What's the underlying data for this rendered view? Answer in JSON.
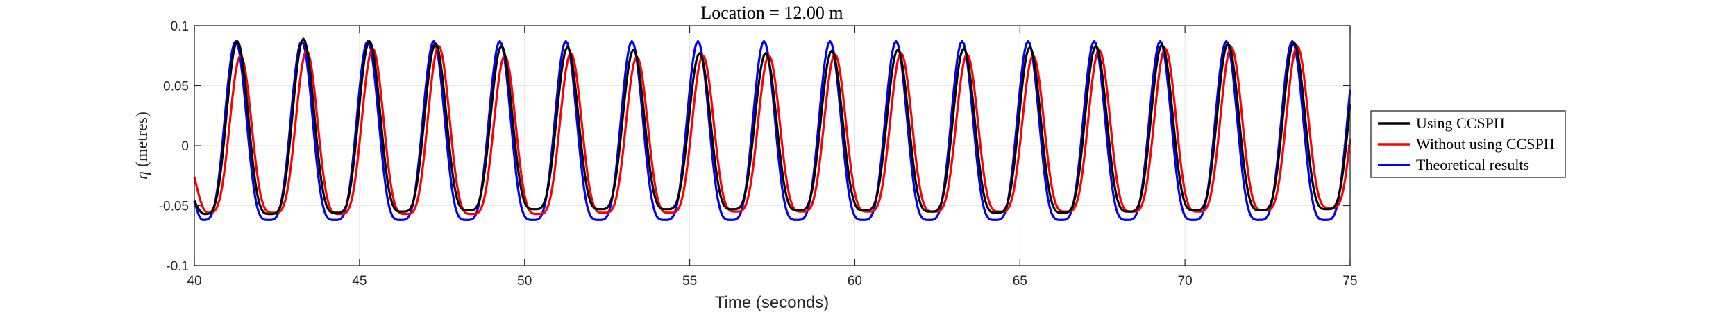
{
  "chart_data": {
    "type": "line",
    "title": "Location = 12.00 m",
    "xlabel": "Time (seconds)",
    "ylabel_symbol": "η",
    "ylabel_text": " (metres)",
    "xlim": [
      40,
      75
    ],
    "ylim": [
      -0.1,
      0.1
    ],
    "xticks": [
      40,
      45,
      50,
      55,
      60,
      65,
      70,
      75
    ],
    "xtick_labels": [
      "40",
      "45",
      "50",
      "55",
      "60",
      "65",
      "70",
      "75"
    ],
    "yticks": [
      -0.1,
      -0.05,
      0,
      0.05,
      0.1
    ],
    "ytick_labels": [
      "-0.1",
      "-0.05",
      "0",
      "0.05",
      "0.1"
    ],
    "grid": true,
    "legend_position": "outside-right",
    "x_step": 0.05,
    "series": [
      {
        "name": "Using CCSPH",
        "color": "#000000",
        "period": 2.0,
        "crest_times": [
          41.3,
          43.3,
          45.3,
          47.3,
          49.3,
          51.3,
          53.3,
          55.3,
          57.3,
          59.3,
          61.3,
          63.3,
          65.3,
          67.3,
          69.3,
          71.3,
          73.3
        ],
        "crests": [
          0.087,
          0.089,
          0.087,
          0.085,
          0.083,
          0.082,
          0.08,
          0.077,
          0.077,
          0.079,
          0.08,
          0.081,
          0.082,
          0.083,
          0.084,
          0.085,
          0.086
        ],
        "troughs": [
          -0.057,
          -0.056,
          -0.055,
          -0.054,
          -0.053,
          -0.053,
          -0.053,
          -0.053,
          -0.054,
          -0.054,
          -0.055,
          -0.056,
          -0.056,
          -0.055,
          -0.054,
          -0.054,
          -0.053
        ],
        "start_value": -0.046,
        "end_value": 0.03
      },
      {
        "name": "Without using CCSPH",
        "color": "#ff0000",
        "period": 2.0,
        "crest_times": [
          41.4,
          43.4,
          45.4,
          47.4,
          49.4,
          51.4,
          53.4,
          55.4,
          57.4,
          59.4,
          61.4,
          63.4,
          65.4,
          67.4,
          69.4,
          71.4,
          73.4
        ],
        "crests": [
          0.075,
          0.079,
          0.081,
          0.083,
          0.075,
          0.077,
          0.074,
          0.075,
          0.075,
          0.076,
          0.077,
          0.076,
          0.075,
          0.08,
          0.081,
          0.082,
          0.083
        ],
        "troughs": [
          -0.056,
          -0.057,
          -0.057,
          -0.057,
          -0.057,
          -0.056,
          -0.056,
          -0.055,
          -0.055,
          -0.055,
          -0.055,
          -0.055,
          -0.055,
          -0.055,
          -0.055,
          -0.054,
          -0.052
        ],
        "start_value": -0.026,
        "end_value": 0.025
      },
      {
        "name": "Theoretical results",
        "color": "#0000ff",
        "period": 2.0,
        "crest_times": [
          41.25,
          43.25,
          45.25,
          47.25,
          49.25,
          51.25,
          53.25,
          55.25,
          57.25,
          59.25,
          61.25,
          63.25,
          65.25,
          67.25,
          69.25,
          71.25,
          73.25
        ],
        "crests": [
          0.087,
          0.087,
          0.087,
          0.087,
          0.087,
          0.087,
          0.087,
          0.087,
          0.087,
          0.087,
          0.087,
          0.087,
          0.087,
          0.087,
          0.087,
          0.087,
          0.087
        ],
        "troughs": [
          -0.062,
          -0.062,
          -0.062,
          -0.062,
          -0.062,
          -0.062,
          -0.062,
          -0.062,
          -0.062,
          -0.062,
          -0.062,
          -0.062,
          -0.062,
          -0.062,
          -0.062,
          -0.062,
          -0.062
        ],
        "start_value": -0.046,
        "end_value": 0.038
      }
    ]
  }
}
